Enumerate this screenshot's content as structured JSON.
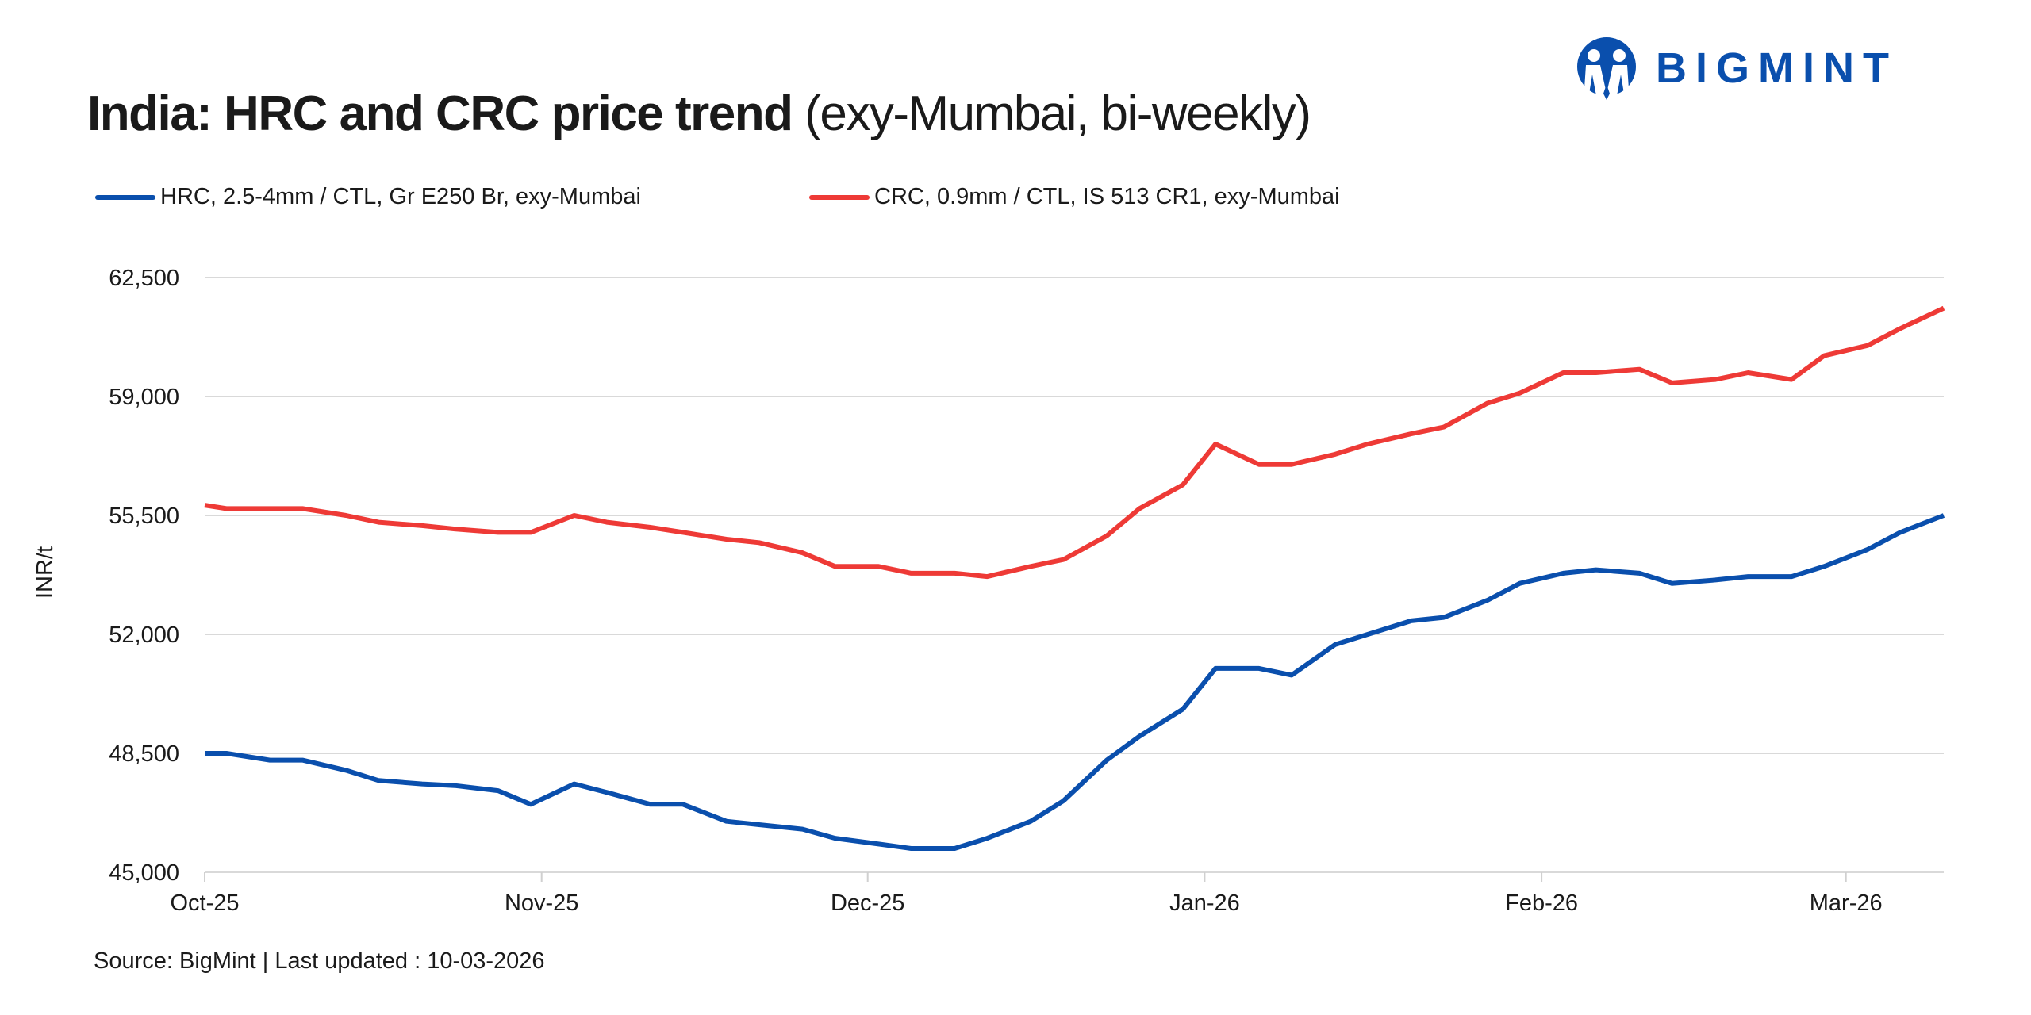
{
  "brand": {
    "name": "BIGMINT",
    "color": "#0a4fad"
  },
  "title": {
    "bold": "India: HRC and CRC price trend",
    "regular": "(exy-Mumbai, bi-weekly)"
  },
  "source": "Source: BigMint | Last updated : 10-03-2026",
  "chart_data": {
    "type": "line",
    "title": "India: HRC and CRC price trend (exy-Mumbai, bi-weekly)",
    "xlabel": "",
    "ylabel": "INR/t",
    "ylim": [
      45000,
      62500
    ],
    "yticks": [
      45000,
      48500,
      52000,
      55500,
      59000,
      62500
    ],
    "ytick_labels": [
      "45,000",
      "48,500",
      "52,000",
      "55,500",
      "59,000",
      "62,500"
    ],
    "xticks": [
      "2025-10-01",
      "2025-11-01",
      "2025-12-01",
      "2026-01-01",
      "2026-02-01",
      "2026-03-01"
    ],
    "xtick_labels": [
      "Oct-25",
      "Nov-25",
      "Dec-25",
      "Jan-26",
      "Feb-26",
      "Mar-26"
    ],
    "xlim": [
      "2025-10-01",
      "2026-03-10"
    ],
    "grid": "horizontal",
    "legend": "top-left",
    "x": [
      "2025-10-01",
      "2025-10-03",
      "2025-10-07",
      "2025-10-10",
      "2025-10-14",
      "2025-10-17",
      "2025-10-21",
      "2025-10-24",
      "2025-10-28",
      "2025-10-31",
      "2025-11-04",
      "2025-11-07",
      "2025-11-11",
      "2025-11-14",
      "2025-11-18",
      "2025-11-21",
      "2025-11-25",
      "2025-11-28",
      "2025-12-02",
      "2025-12-05",
      "2025-12-09",
      "2025-12-12",
      "2025-12-16",
      "2025-12-19",
      "2025-12-23",
      "2025-12-26",
      "2025-12-30",
      "2026-01-02",
      "2026-01-06",
      "2026-01-09",
      "2026-01-13",
      "2026-01-16",
      "2026-01-20",
      "2026-01-23",
      "2026-01-27",
      "2026-01-30",
      "2026-02-03",
      "2026-02-06",
      "2026-02-10",
      "2026-02-13",
      "2026-02-17",
      "2026-02-20",
      "2026-02-24",
      "2026-02-27",
      "2026-03-03",
      "2026-03-06",
      "2026-03-10"
    ],
    "series": [
      {
        "name": "HRC, 2.5-4mm / CTL, Gr E250 Br, exy-Mumbai",
        "color": "#0a4fad",
        "values": [
          48500,
          48500,
          48300,
          48300,
          48000,
          47700,
          47600,
          47550,
          47400,
          47000,
          47600,
          47350,
          47000,
          47000,
          46500,
          46400,
          46270,
          46000,
          45830,
          45700,
          45700,
          46000,
          46500,
          47100,
          48300,
          49000,
          49800,
          51000,
          51000,
          50800,
          51700,
          52000,
          52400,
          52500,
          53000,
          53500,
          53800,
          53900,
          53800,
          53500,
          53600,
          53700,
          53700,
          54000,
          54500,
          55000,
          55500
        ]
      },
      {
        "name": "CRC, 0.9mm / CTL, IS 513 CR1, exy-Mumbai",
        "color": "#ee3a36",
        "values": [
          55800,
          55700,
          55700,
          55700,
          55500,
          55300,
          55200,
          55100,
          55000,
          55000,
          55500,
          55300,
          55150,
          55000,
          54800,
          54700,
          54400,
          54000,
          54000,
          53800,
          53800,
          53700,
          54000,
          54200,
          54900,
          55700,
          56400,
          57600,
          57000,
          57000,
          57300,
          57600,
          57900,
          58100,
          58800,
          59100,
          59700,
          59700,
          59800,
          59400,
          59500,
          59700,
          59500,
          60200,
          60500,
          61000,
          61600
        ]
      }
    ]
  }
}
